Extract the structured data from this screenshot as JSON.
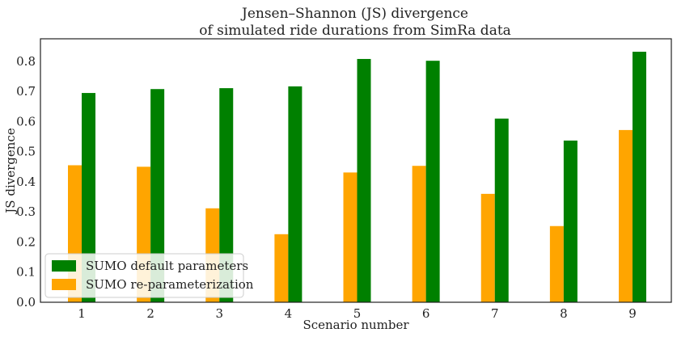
{
  "chart_data": {
    "type": "bar",
    "title_lines": [
      "Jensen–Shannon (JS) divergence",
      "of simulated ride durations from SimRa data"
    ],
    "xlabel": "Scenario number",
    "ylabel": "JS divergence",
    "categories": [
      "1",
      "2",
      "3",
      "4",
      "5",
      "6",
      "7",
      "8",
      "9"
    ],
    "ylim": [
      0,
      0.875
    ],
    "yticks": [
      "0.0",
      "0.1",
      "0.2",
      "0.3",
      "0.4",
      "0.5",
      "0.6",
      "0.7",
      "0.8"
    ],
    "grid": false,
    "legend_position": "lower-left",
    "series": [
      {
        "name": "SUMO default parameters",
        "color": "#008000",
        "values": [
          0.695,
          0.708,
          0.711,
          0.717,
          0.808,
          0.802,
          0.61,
          0.537,
          0.832
        ]
      },
      {
        "name": "SUMO re-parameterization",
        "color": "#ffa500",
        "values": [
          0.455,
          0.45,
          0.312,
          0.226,
          0.431,
          0.453,
          0.36,
          0.253,
          0.572
        ]
      }
    ]
  }
}
